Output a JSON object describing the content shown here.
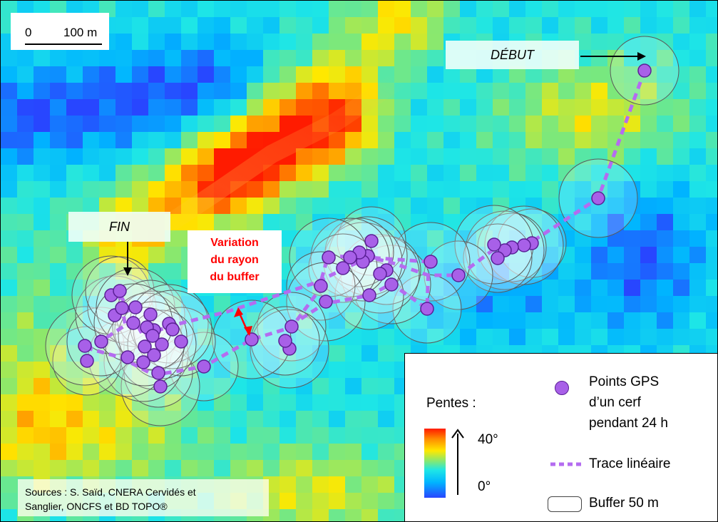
{
  "scale_bar": {
    "zero_label": "0",
    "distance_label": "100 m"
  },
  "labels": {
    "start": "DÉBUT",
    "end": "FIN",
    "annotation_lines": [
      "Variation",
      "du rayon",
      "du buffer"
    ]
  },
  "sources": {
    "lines": [
      "Sources : S. Saïd, CNERA Cervidés et",
      "Sanglier, ONCFS et BD TOPO®"
    ]
  },
  "legend": {
    "slope_title": "Pentes :",
    "slope_max": "40°",
    "slope_min": "0°",
    "gps_label_lines": [
      "Points GPS",
      "d’un cerf",
      "pendant 24 h"
    ],
    "trace_label": "Trace linéaire",
    "buffer_label": "Buffer 50 m"
  },
  "colors": {
    "gps_point_fill": "#a860e8",
    "gps_point_stroke": "#5a1f96",
    "trace": "#b46cf0",
    "annotation": "#ff0000",
    "slope_scale": [
      "#2846ff",
      "#00b4ff",
      "#1ee6e6",
      "#7de87a",
      "#ffe800",
      "#ff8c00",
      "#ff1a00"
    ]
  },
  "icons": {
    "arrow": "arrow-icon",
    "gps": "gps-point-icon",
    "buffer": "buffer-icon"
  }
}
